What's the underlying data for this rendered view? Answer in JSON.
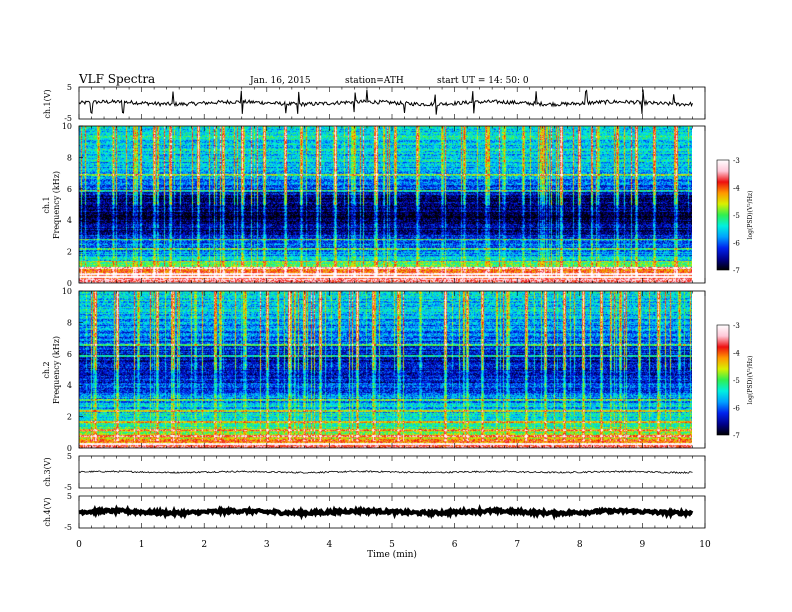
{
  "header": {
    "title": "VLF  Spectra",
    "date": "Jan. 16, 2015",
    "station": "station=ATH",
    "start": "start  UT =   14: 50: 0"
  },
  "colors": {
    "background": "#ffffff",
    "axis": "#000000",
    "colormap": [
      "#000000",
      "#00008c",
      "#0022ee",
      "#00a0ff",
      "#00f0e0",
      "#30f050",
      "#d8f000",
      "#ff9800",
      "#ee1010",
      "#ffc8d8",
      "#ffffff"
    ]
  },
  "chart_data": [
    {
      "type": "line",
      "name": "ch1",
      "ylabel": "ch.1(V)",
      "yticks": [
        "5",
        "-5"
      ],
      "ylim": [
        -5,
        5
      ],
      "xlim": [
        0,
        10
      ],
      "baseline": 0.0,
      "noise_amplitude": 0.6,
      "spikes": [
        0.2,
        0.7,
        1.5,
        2.6,
        3.3,
        3.5,
        4.4,
        4.6,
        5.2,
        5.7,
        6.3,
        7.3,
        8.1,
        9.0,
        9.5
      ],
      "x_end": 9.8,
      "line_color": "#000000"
    },
    {
      "type": "heatmap",
      "name": "ch1",
      "ylabel": "Frequency  (kHz)",
      "channel_label": "ch.1",
      "ylim": [
        0,
        10
      ],
      "yticks": [
        "0",
        "2",
        "4",
        "6",
        "8",
        "10"
      ],
      "xlim": [
        0,
        10
      ],
      "x_end": 9.8,
      "colorbar": {
        "label": "log(PSD)(V²/Hz)",
        "range": [
          -7,
          -3
        ],
        "ticks": [
          "-3",
          "-4",
          "-5",
          "-6",
          "-7"
        ]
      },
      "freq_profile_khz": [
        0,
        0.5,
        1.0,
        1.5,
        2.0,
        2.5,
        3.0,
        3.5,
        4.0,
        4.5,
        5.0,
        5.5,
        6.0,
        6.5,
        7.0,
        7.5,
        8.0,
        8.5,
        9.0,
        9.5,
        10.0
      ],
      "mean_log_psd": [
        -3.3,
        -3.6,
        -4.6,
        -5.6,
        -5.9,
        -6.1,
        -6.4,
        -6.6,
        -6.8,
        -6.8,
        -6.7,
        -6.6,
        -6.2,
        -6.0,
        -5.8,
        -5.6,
        -5.6,
        -5.5,
        -5.5,
        -5.4,
        -5.4
      ],
      "lines_khz": [
        0.4,
        0.6,
        1.0,
        1.4,
        2.2,
        2.8,
        5.9,
        6.9
      ],
      "sferic_times_min": [
        0.3,
        0.55,
        0.9,
        1.2,
        1.45,
        1.9,
        2.3,
        2.6,
        2.95,
        3.3,
        3.55,
        3.8,
        4.1,
        4.4,
        4.75,
        5.05,
        5.4,
        5.8,
        6.15,
        6.5,
        6.8,
        7.1,
        7.4,
        7.7,
        8.0,
        8.3,
        8.6,
        8.9,
        9.2,
        9.55
      ]
    },
    {
      "type": "heatmap",
      "name": "ch2",
      "ylabel": "Frequency  (kHz)",
      "channel_label": "ch.2",
      "ylim": [
        0,
        10
      ],
      "yticks": [
        "0",
        "2",
        "4",
        "6",
        "8",
        "10"
      ],
      "xlim": [
        0,
        10
      ],
      "x_end": 9.8,
      "colorbar": {
        "label": "log(PSD)(V²/Hz)",
        "range": [
          -7,
          -3
        ],
        "ticks": [
          "-3",
          "-4",
          "-5",
          "-6",
          "-7"
        ]
      },
      "freq_profile_khz": [
        0,
        0.5,
        1.0,
        1.5,
        2.0,
        2.5,
        3.0,
        3.5,
        4.0,
        4.5,
        5.0,
        5.5,
        6.0,
        6.5,
        7.0,
        7.5,
        8.0,
        8.5,
        9.0,
        9.5,
        10.0
      ],
      "mean_log_psd": [
        -3.5,
        -4.2,
        -4.8,
        -5.2,
        -5.4,
        -5.6,
        -5.8,
        -6.0,
        -6.2,
        -6.4,
        -6.3,
        -6.5,
        -6.4,
        -6.2,
        -6.0,
        -5.9,
        -5.8,
        -5.7,
        -5.6,
        -5.5,
        -5.5
      ],
      "lines_khz": [
        0.3,
        0.8,
        1.2,
        1.7,
        2.4,
        3.1,
        5.9,
        6.6
      ],
      "sferic_times_min": [
        0.25,
        0.6,
        0.95,
        1.25,
        1.5,
        1.85,
        2.25,
        2.65,
        3.0,
        3.35,
        3.6,
        3.85,
        4.15,
        4.45,
        4.7,
        5.1,
        5.45,
        5.85,
        6.2,
        6.45,
        6.85,
        7.15,
        7.45,
        7.75,
        8.05,
        8.35,
        8.65,
        8.95,
        9.25,
        9.6
      ]
    },
    {
      "type": "line",
      "name": "ch3",
      "ylabel": "ch.3(V)",
      "yticks": [
        "5",
        "-5"
      ],
      "ylim": [
        -5,
        5
      ],
      "xlim": [
        0,
        10
      ],
      "baseline": 0.0,
      "noise_amplitude": 0.25,
      "spikes": [],
      "x_end": 9.8,
      "line_color": "#000000"
    },
    {
      "type": "line",
      "name": "ch4",
      "ylabel": "ch.4(V)",
      "yticks": [
        "5",
        "-5"
      ],
      "ylim": [
        -5,
        5
      ],
      "xlim": [
        0,
        10
      ],
      "baseline": 0.0,
      "noise_amplitude": 0.5,
      "spikes": [],
      "x_end": 9.8,
      "line_color": "#000000",
      "thick": true
    }
  ],
  "xaxis": {
    "label": "Time  (min)",
    "ticks": [
      "0",
      "1",
      "2",
      "3",
      "4",
      "5",
      "6",
      "7",
      "8",
      "9",
      "10"
    ],
    "range": [
      0,
      10
    ]
  }
}
